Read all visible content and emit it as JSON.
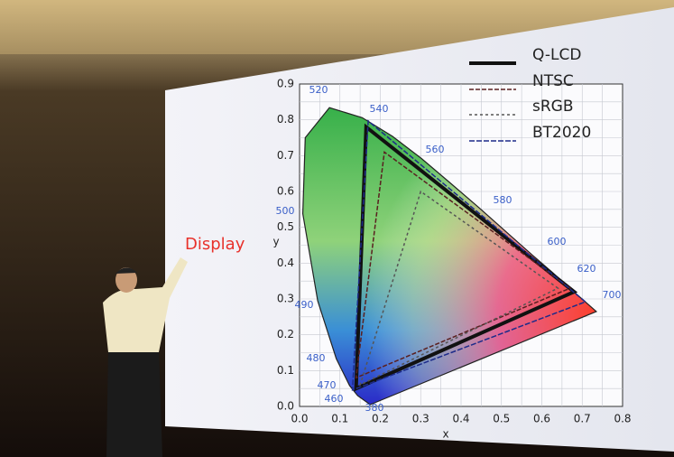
{
  "annotation": "Display",
  "slide": {
    "x_label": "x",
    "y_label": "y",
    "xticks": [
      "0.0",
      "0.1",
      "0.2",
      "0.3",
      "0.4",
      "0.5",
      "0.6",
      "0.7",
      "0.8"
    ],
    "yticks": [
      "0.0",
      "0.1",
      "0.2",
      "0.3",
      "0.4",
      "0.5",
      "0.6",
      "0.7",
      "0.8",
      "0.9"
    ],
    "wavelengths": [
      "520",
      "540",
      "560",
      "580",
      "600",
      "620",
      "700",
      "500",
      "490",
      "480",
      "470",
      "460",
      "380"
    ],
    "legend": [
      "Q-LCD",
      "NTSC",
      "sRGB",
      "BT2020"
    ]
  }
}
